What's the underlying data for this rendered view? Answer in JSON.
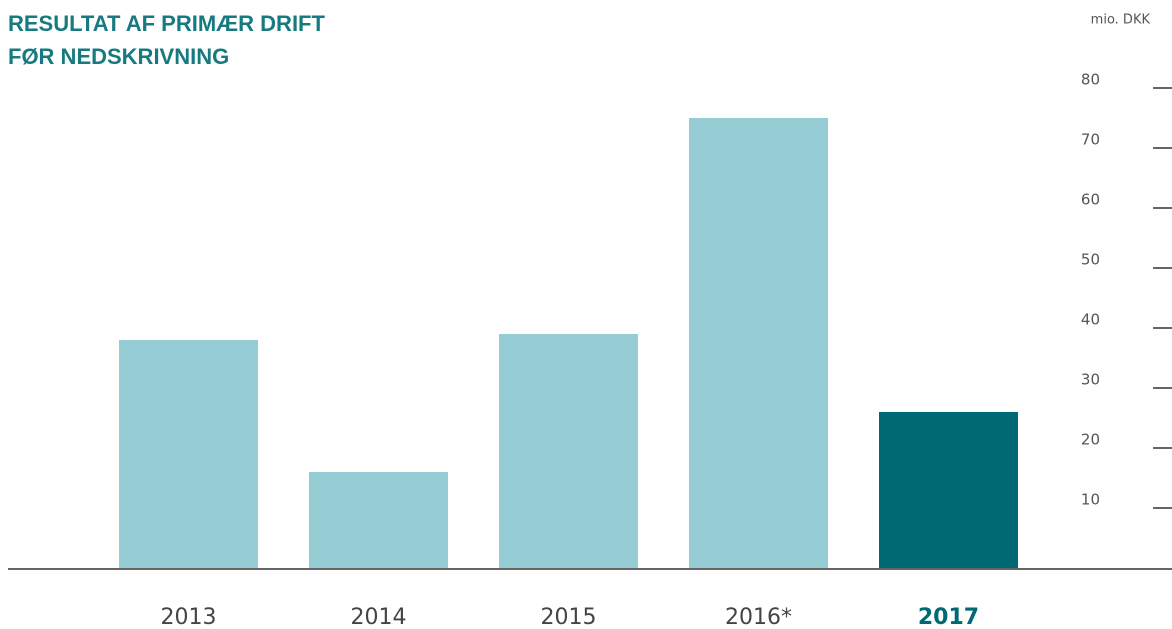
{
  "chart_data": {
    "type": "bar",
    "title": [
      "RESULTAT AF PRIMÆR DRIFT",
      "FØR NEDSKRIVNING"
    ],
    "unit": "mio. DKK",
    "categories": [
      "2013",
      "2014",
      "2015",
      "2016*",
      "2017"
    ],
    "values": [
      38,
      16,
      39,
      75,
      26
    ],
    "colors": [
      "#96cdd5",
      "#96cdd5",
      "#96cdd5",
      "#96cdd5",
      "#006a74"
    ],
    "label_bold": [
      false,
      false,
      false,
      false,
      true
    ],
    "ylim": [
      0,
      80
    ],
    "yticks": [
      10,
      20,
      30,
      40,
      50,
      60,
      70,
      80
    ]
  }
}
